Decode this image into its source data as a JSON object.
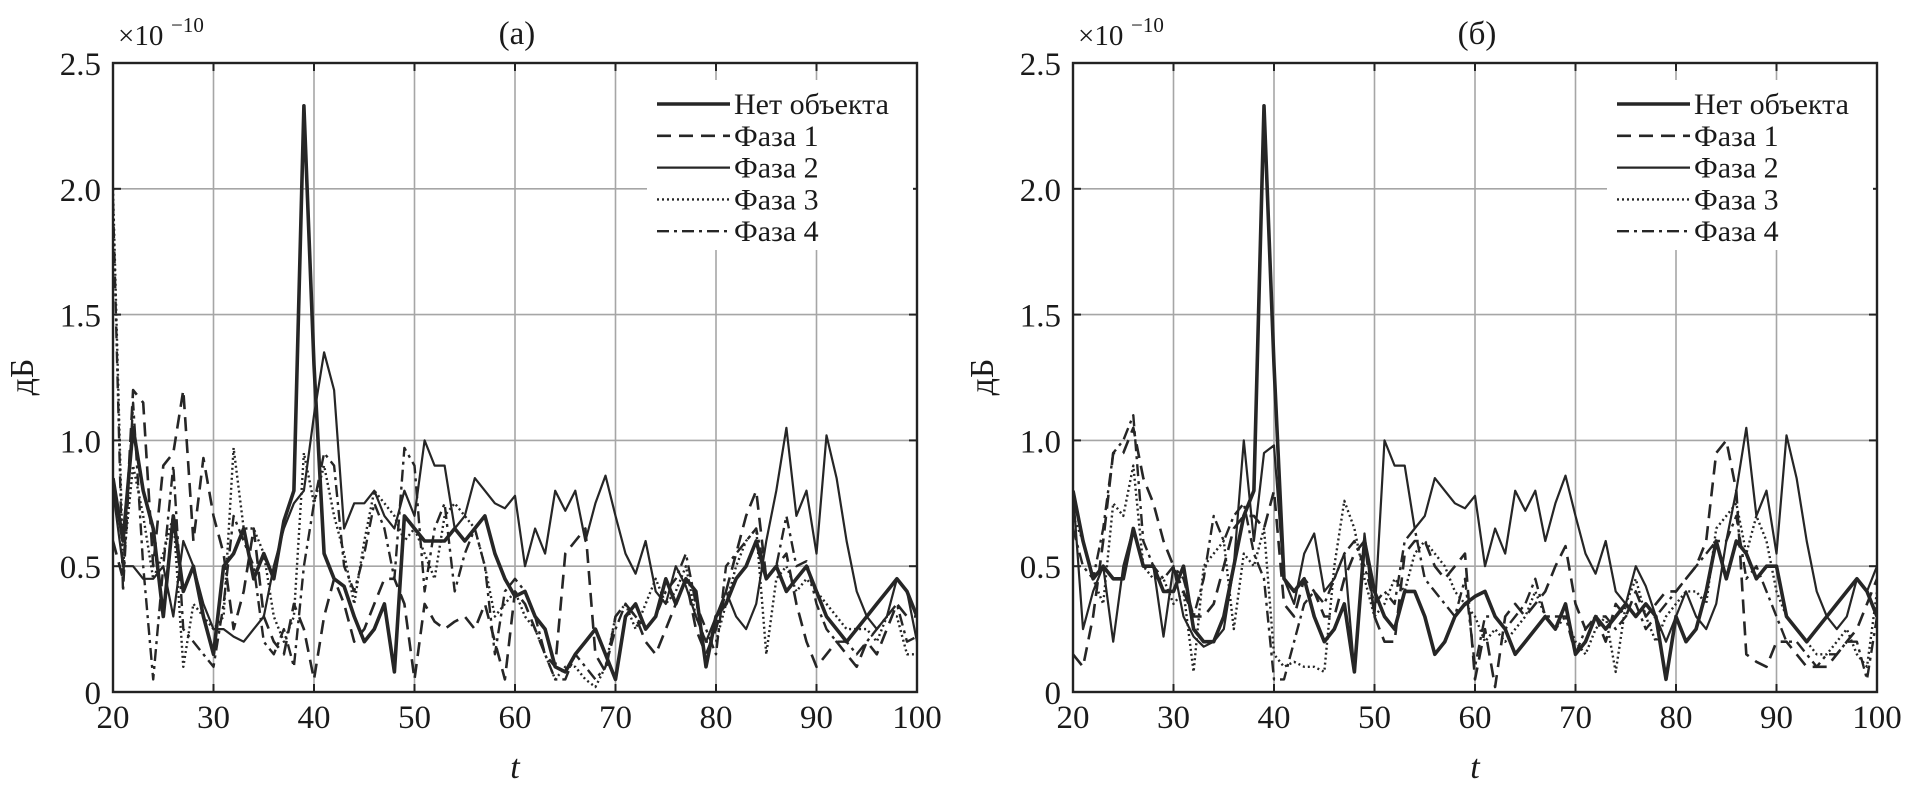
{
  "chart_data": [
    {
      "type": "line",
      "title": "(а)",
      "xlabel": "t",
      "ylabel": "дБ",
      "y_multiplier": "×10",
      "y_multiplier_exp": "−10",
      "xlim": [
        20,
        100
      ],
      "ylim": [
        0,
        2.5
      ],
      "xticks": [
        "20",
        "30",
        "40",
        "50",
        "60",
        "70",
        "80",
        "90",
        "100"
      ],
      "yticks": [
        "0",
        "0.5",
        "1.0",
        "1.5",
        "2.0",
        "2.5"
      ],
      "grid": true,
      "legend_position": "top-right",
      "x_start": 20,
      "x_step": 1,
      "series": [
        {
          "name": "Нет объекта",
          "style": "thick-solid",
          "values": [
            0.85,
            0.6,
            1.05,
            0.8,
            0.65,
            0.3,
            0.7,
            0.4,
            0.5,
            0.3,
            0.15,
            0.5,
            0.55,
            0.65,
            0.45,
            0.55,
            0.45,
            0.68,
            0.8,
            2.33,
            1.3,
            0.55,
            0.45,
            0.42,
            0.3,
            0.2,
            0.25,
            0.35,
            0.08,
            0.7,
            0.65,
            0.6,
            0.6,
            0.6,
            0.65,
            0.6,
            0.65,
            0.7,
            0.55,
            0.45,
            0.38,
            0.4,
            0.3,
            0.25,
            0.1,
            0.08,
            0.15,
            0.2,
            0.25,
            0.15,
            0.05,
            0.3,
            0.35,
            0.25,
            0.3,
            0.45,
            0.35,
            0.45,
            0.4,
            0.1,
            0.3,
            0.35,
            0.45,
            0.5,
            0.6,
            0.45,
            0.5,
            0.4,
            0.45,
            0.5,
            0.4,
            0.3,
            0.25,
            0.2,
            0.25,
            0.3,
            0.35,
            0.4,
            0.45,
            0.4,
            0.3
          ]
        },
        {
          "name": "Фаза 1",
          "style": "dashed",
          "values": [
            0.6,
            0.45,
            1.2,
            1.15,
            0.5,
            0.9,
            0.95,
            1.2,
            0.6,
            0.93,
            0.7,
            0.55,
            0.25,
            0.4,
            0.65,
            0.3,
            0.2,
            0.15,
            0.35,
            0.25,
            0.05,
            0.3,
            0.45,
            0.35,
            0.2,
            0.25,
            0.35,
            0.45,
            0.45,
            0.35,
            0.05,
            0.35,
            0.28,
            0.25,
            0.28,
            0.3,
            0.25,
            0.35,
            0.2,
            0.05,
            0.4,
            0.35,
            0.25,
            0.15,
            0.1,
            0.55,
            0.6,
            0.65,
            0.15,
            0.08,
            0.3,
            0.35,
            0.3,
            0.2,
            0.15,
            0.25,
            0.35,
            0.45,
            0.25,
            0.15,
            0.25,
            0.4,
            0.55,
            0.7,
            0.8,
            0.45,
            0.5,
            0.55,
            0.35,
            0.2,
            0.1,
            0.15,
            0.2,
            0.15,
            0.1,
            0.2,
            0.15,
            0.25,
            0.35,
            0.3,
            0.3
          ]
        },
        {
          "name": "Фаза 2",
          "style": "thin-solid",
          "values": [
            0.8,
            0.5,
            0.5,
            0.45,
            0.45,
            0.5,
            0.3,
            0.6,
            0.5,
            0.35,
            0.25,
            0.25,
            0.22,
            0.2,
            0.25,
            0.3,
            0.5,
            0.65,
            0.75,
            0.8,
            1.1,
            1.35,
            1.2,
            0.65,
            0.75,
            0.75,
            0.8,
            0.7,
            0.65,
            0.8,
            0.7,
            1.0,
            0.9,
            0.9,
            0.65,
            0.7,
            0.85,
            0.8,
            0.75,
            0.73,
            0.78,
            0.5,
            0.65,
            0.55,
            0.8,
            0.72,
            0.8,
            0.6,
            0.75,
            0.86,
            0.7,
            0.55,
            0.47,
            0.6,
            0.4,
            0.35,
            0.5,
            0.42,
            0.3,
            0.2,
            0.3,
            0.4,
            0.3,
            0.25,
            0.35,
            0.6,
            0.8,
            1.05,
            0.7,
            0.8,
            0.55,
            1.02,
            0.85,
            0.6,
            0.4,
            0.3,
            0.25,
            0.3,
            0.45,
            0.4,
            0.2
          ]
        },
        {
          "name": "Фаза 3",
          "style": "dotted",
          "values": [
            2.0,
            0.5,
            0.9,
            0.7,
            0.45,
            0.55,
            0.7,
            0.1,
            0.35,
            0.3,
            0.25,
            0.3,
            0.97,
            0.65,
            0.65,
            0.55,
            0.3,
            0.2,
            0.3,
            0.95,
            0.75,
            0.9,
            0.7,
            0.55,
            0.35,
            0.6,
            0.8,
            0.75,
            0.7,
            0.6,
            0.65,
            0.55,
            0.45,
            0.7,
            0.75,
            0.7,
            0.65,
            0.5,
            0.3,
            0.35,
            0.4,
            0.3,
            0.25,
            0.15,
            0.05,
            0.1,
            0.1,
            0.05,
            0.02,
            0.1,
            0.3,
            0.35,
            0.25,
            0.35,
            0.45,
            0.35,
            0.4,
            0.5,
            0.3,
            0.2,
            0.2,
            0.35,
            0.5,
            0.6,
            0.65,
            0.15,
            0.45,
            0.5,
            0.4,
            0.45,
            0.4,
            0.35,
            0.3,
            0.25,
            0.25,
            0.25,
            0.2,
            0.3,
            0.3,
            0.15,
            0.15
          ]
        },
        {
          "name": "Фаза 4",
          "style": "dashdot",
          "values": [
            1.95,
            0.4,
            1.15,
            0.5,
            0.05,
            0.5,
            0.9,
            0.25,
            0.2,
            0.15,
            0.1,
            0.35,
            0.7,
            0.6,
            0.5,
            0.2,
            0.15,
            0.25,
            0.1,
            0.5,
            0.75,
            0.95,
            0.9,
            0.5,
            0.4,
            0.55,
            0.75,
            0.65,
            0.45,
            0.97,
            0.9,
            0.4,
            0.65,
            0.75,
            0.4,
            0.55,
            0.65,
            0.5,
            0.15,
            0.4,
            0.45,
            0.4,
            0.3,
            0.15,
            0.05,
            0.05,
            0.15,
            0.1,
            0.05,
            0.1,
            0.25,
            0.35,
            0.3,
            0.25,
            0.3,
            0.4,
            0.45,
            0.55,
            0.35,
            0.25,
            0.15,
            0.5,
            0.55,
            0.6,
            0.65,
            0.45,
            0.5,
            0.7,
            0.5,
            0.52,
            0.35,
            0.25,
            0.2,
            0.2,
            0.15,
            0.2,
            0.25,
            0.3,
            0.35,
            0.2,
            0.22
          ]
        }
      ]
    },
    {
      "type": "line",
      "title": "(б)",
      "xlabel": "t",
      "ylabel": "дБ",
      "y_multiplier": "×10",
      "y_multiplier_exp": "−10",
      "xlim": [
        20,
        100
      ],
      "ylim": [
        0,
        2.5
      ],
      "xticks": [
        "20",
        "30",
        "40",
        "50",
        "60",
        "70",
        "80",
        "90",
        "100"
      ],
      "yticks": [
        "0",
        "0.5",
        "1.0",
        "1.5",
        "2.0",
        "2.5"
      ],
      "grid": true,
      "legend_position": "top-right",
      "x_start": 20,
      "x_step": 1,
      "series": [
        {
          "name": "Нет объекта",
          "style": "thick-solid",
          "values": [
            0.8,
            0.6,
            0.45,
            0.5,
            0.45,
            0.45,
            0.65,
            0.5,
            0.5,
            0.4,
            0.4,
            0.5,
            0.25,
            0.2,
            0.2,
            0.3,
            0.5,
            0.7,
            0.8,
            2.33,
            1.3,
            0.45,
            0.4,
            0.45,
            0.3,
            0.2,
            0.25,
            0.35,
            0.08,
            0.6,
            0.4,
            0.3,
            0.25,
            0.4,
            0.4,
            0.3,
            0.15,
            0.2,
            0.3,
            0.35,
            0.38,
            0.4,
            0.3,
            0.25,
            0.15,
            0.2,
            0.25,
            0.3,
            0.25,
            0.35,
            0.15,
            0.2,
            0.3,
            0.25,
            0.3,
            0.35,
            0.3,
            0.35,
            0.3,
            0.05,
            0.3,
            0.2,
            0.25,
            0.4,
            0.6,
            0.45,
            0.6,
            0.55,
            0.45,
            0.5,
            0.5,
            0.3,
            0.25,
            0.2,
            0.25,
            0.3,
            0.35,
            0.4,
            0.45,
            0.4,
            0.3
          ]
        },
        {
          "name": "Фаза 1",
          "style": "dashed",
          "values": [
            0.15,
            0.1,
            0.3,
            0.6,
            0.95,
            0.95,
            1.05,
            0.85,
            0.75,
            0.6,
            0.5,
            0.4,
            0.3,
            0.3,
            0.35,
            0.5,
            0.65,
            0.7,
            0.7,
            0.65,
            0.8,
            0.35,
            0.3,
            0.45,
            0.4,
            0.3,
            0.3,
            0.45,
            0.55,
            0.6,
            0.3,
            0.2,
            0.2,
            0.55,
            0.6,
            0.6,
            0.5,
            0.45,
            0.5,
            0.55,
            0.05,
            0.25,
            0.02,
            0.3,
            0.35,
            0.3,
            0.35,
            0.4,
            0.5,
            0.58,
            0.35,
            0.25,
            0.3,
            0.2,
            0.35,
            0.3,
            0.4,
            0.3,
            0.35,
            0.4,
            0.4,
            0.45,
            0.5,
            0.6,
            0.95,
            1.0,
            0.8,
            0.15,
            0.12,
            0.1,
            0.2,
            0.2,
            0.15,
            0.1,
            0.1,
            0.1,
            0.15,
            0.2,
            0.25,
            0.35,
            0.45
          ]
        },
        {
          "name": "Фаза 2",
          "style": "thin-solid",
          "values": [
            0.8,
            0.25,
            0.4,
            0.5,
            0.2,
            0.5,
            0.65,
            0.5,
            0.5,
            0.22,
            0.5,
            0.3,
            0.22,
            0.18,
            0.2,
            0.25,
            0.5,
            1.0,
            0.6,
            0.95,
            0.98,
            0.45,
            0.35,
            0.55,
            0.63,
            0.4,
            0.45,
            0.55,
            0.08,
            0.63,
            0.3,
            1.0,
            0.9,
            0.9,
            0.65,
            0.7,
            0.85,
            0.8,
            0.75,
            0.73,
            0.78,
            0.5,
            0.65,
            0.55,
            0.8,
            0.72,
            0.8,
            0.6,
            0.75,
            0.86,
            0.7,
            0.55,
            0.47,
            0.6,
            0.4,
            0.35,
            0.5,
            0.42,
            0.3,
            0.2,
            0.3,
            0.4,
            0.3,
            0.25,
            0.35,
            0.6,
            0.8,
            1.05,
            0.7,
            0.8,
            0.55,
            1.02,
            0.85,
            0.6,
            0.4,
            0.3,
            0.25,
            0.3,
            0.45,
            0.4,
            0.5
          ]
        },
        {
          "name": "Фаза 3",
          "style": "dotted",
          "values": [
            0.7,
            0.6,
            0.45,
            0.35,
            0.75,
            0.7,
            0.9,
            0.5,
            0.45,
            0.45,
            0.35,
            0.4,
            0.08,
            0.5,
            0.55,
            0.6,
            0.25,
            0.55,
            0.5,
            0.65,
            0.15,
            0.1,
            0.12,
            0.1,
            0.1,
            0.08,
            0.5,
            0.76,
            0.65,
            0.45,
            0.3,
            0.35,
            0.45,
            0.4,
            0.55,
            0.6,
            0.55,
            0.5,
            0.4,
            0.35,
            0.3,
            0.2,
            0.25,
            0.2,
            0.25,
            0.3,
            0.4,
            0.3,
            0.25,
            0.3,
            0.2,
            0.15,
            0.25,
            0.3,
            0.08,
            0.35,
            0.45,
            0.3,
            0.2,
            0.3,
            0.35,
            0.4,
            0.4,
            0.35,
            0.65,
            0.7,
            0.75,
            0.55,
            0.7,
            0.6,
            0.4,
            0.3,
            0.25,
            0.2,
            0.15,
            0.15,
            0.2,
            0.25,
            0.15,
            0.1,
            0.4
          ]
        },
        {
          "name": "Фаза 4",
          "style": "dashdot",
          "values": [
            0.65,
            0.5,
            0.45,
            0.65,
            0.95,
            1.0,
            1.1,
            0.6,
            0.5,
            0.45,
            0.5,
            0.45,
            0.3,
            0.45,
            0.7,
            0.6,
            0.7,
            0.75,
            0.55,
            0.45,
            0.05,
            0.05,
            0.2,
            0.35,
            0.4,
            0.35,
            0.45,
            0.55,
            0.6,
            0.5,
            0.35,
            0.4,
            0.35,
            0.6,
            0.65,
            0.45,
            0.4,
            0.35,
            0.3,
            0.45,
            0.1,
            0.3,
            0.3,
            0.25,
            0.3,
            0.35,
            0.45,
            0.3,
            0.3,
            0.3,
            0.15,
            0.25,
            0.3,
            0.3,
            0.25,
            0.3,
            0.35,
            0.25,
            0.3,
            0.35,
            0.4,
            0.45,
            0.5,
            0.55,
            0.6,
            0.6,
            0.7,
            0.45,
            0.5,
            0.4,
            0.3,
            0.2,
            0.2,
            0.15,
            0.1,
            0.15,
            0.15,
            0.2,
            0.2,
            0.05,
            0.3
          ]
        }
      ]
    }
  ]
}
